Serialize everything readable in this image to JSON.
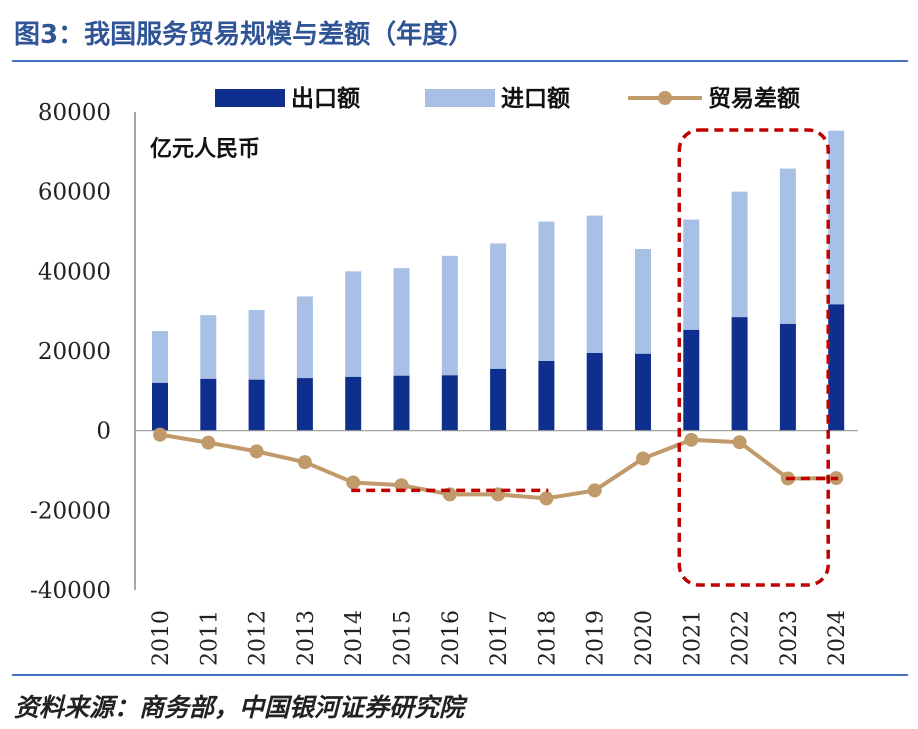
{
  "title": "图3：我国服务贸易规模与差额（年度）",
  "source": "资料来源：商务部，中国银河证券研究院",
  "colors": {
    "title": "#2f5597",
    "rule": "#4472c4",
    "export": "#0f2f8f",
    "import": "#a9c0e6",
    "balance": "#c09a6b",
    "highlight": "#c00000"
  },
  "chart_data": {
    "type": "bar",
    "stacked": true,
    "unit_label": "亿元人民币",
    "categories": [
      "2010",
      "2011",
      "2012",
      "2013",
      "2014",
      "2015",
      "2016",
      "2017",
      "2018",
      "2019",
      "2020",
      "2021",
      "2022",
      "2023",
      "2024"
    ],
    "ylim": [
      -40000,
      80000
    ],
    "yticks": [
      "80000",
      "60000",
      "40000",
      "20000",
      "0",
      "-20000",
      "-40000"
    ],
    "legend_position": "top",
    "series": [
      {
        "name": "出口额",
        "type": "bar",
        "values": [
          12000,
          13000,
          12800,
          13200,
          13500,
          13800,
          13900,
          15500,
          17500,
          19500,
          19300,
          25300,
          28500,
          26800,
          31700
        ]
      },
      {
        "name": "进口额",
        "type": "bar",
        "values": [
          13000,
          16000,
          17500,
          20500,
          26500,
          27000,
          30000,
          31500,
          35000,
          34500,
          26300,
          27700,
          31500,
          39000,
          43600
        ]
      },
      {
        "name": "贸易差额",
        "type": "line",
        "values": [
          -1000,
          -3000,
          -5200,
          -7900,
          -13000,
          -13700,
          -16000,
          -16000,
          -17000,
          -15000,
          -7000,
          -2300,
          -2900,
          -12000,
          -11900
        ]
      }
    ],
    "annotations": [
      {
        "type": "dashed-line",
        "from": "2014",
        "to": "2018",
        "y": -15000
      },
      {
        "type": "dashed-line",
        "from": "2023",
        "to": "2024",
        "y": -12000
      },
      {
        "type": "dashed-box",
        "from": "2021",
        "to": "2024"
      }
    ]
  }
}
